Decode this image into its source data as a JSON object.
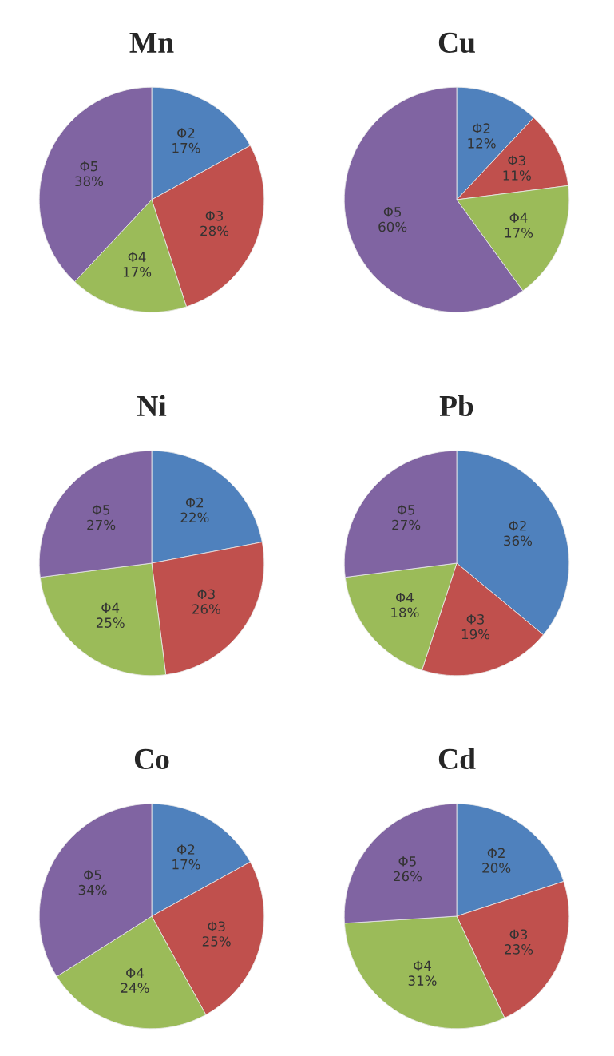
{
  "chart_data": [
    {
      "type": "pie",
      "title": "Mn",
      "categories": [
        "Φ2",
        "Φ3",
        "Φ4",
        "Φ5"
      ],
      "values": [
        17,
        28,
        17,
        38
      ],
      "value_labels": [
        "17%",
        "28%",
        "17%",
        "38%"
      ],
      "colors": [
        "#4f81bd",
        "#c0504d",
        "#9bbb59",
        "#8064a2"
      ]
    },
    {
      "type": "pie",
      "title": "Cu",
      "categories": [
        "Φ2",
        "Φ3",
        "Φ4",
        "Φ5"
      ],
      "values": [
        12,
        11,
        17,
        60
      ],
      "value_labels": [
        "12%",
        "11%",
        "17%",
        "60%"
      ],
      "colors": [
        "#4f81bd",
        "#c0504d",
        "#9bbb59",
        "#8064a2"
      ]
    },
    {
      "type": "pie",
      "title": "Ni",
      "categories": [
        "Φ2",
        "Φ3",
        "Φ4",
        "Φ5"
      ],
      "values": [
        22,
        26,
        25,
        27
      ],
      "value_labels": [
        "22%",
        "26%",
        "25%",
        "27%"
      ],
      "colors": [
        "#4f81bd",
        "#c0504d",
        "#9bbb59",
        "#8064a2"
      ]
    },
    {
      "type": "pie",
      "title": "Pb",
      "categories": [
        "Φ2",
        "Φ3",
        "Φ4",
        "Φ5"
      ],
      "values": [
        36,
        19,
        18,
        27
      ],
      "value_labels": [
        "36%",
        "19%",
        "18%",
        "27%"
      ],
      "colors": [
        "#4f81bd",
        "#c0504d",
        "#9bbb59",
        "#8064a2"
      ]
    },
    {
      "type": "pie",
      "title": "Co",
      "categories": [
        "Φ2",
        "Φ3",
        "Φ4",
        "Φ5"
      ],
      "values": [
        17,
        25,
        24,
        34
      ],
      "value_labels": [
        "17%",
        "25%",
        "24%",
        "34%"
      ],
      "colors": [
        "#4f81bd",
        "#c0504d",
        "#9bbb59",
        "#8064a2"
      ]
    },
    {
      "type": "pie",
      "title": "Cd",
      "categories": [
        "Φ2",
        "Φ3",
        "Φ4",
        "Φ5"
      ],
      "values": [
        20,
        23,
        31,
        26
      ],
      "value_labels": [
        "20%",
        "23%",
        "31%",
        "26%"
      ],
      "colors": [
        "#4f81bd",
        "#c0504d",
        "#9bbb59",
        "#8064a2"
      ]
    }
  ]
}
